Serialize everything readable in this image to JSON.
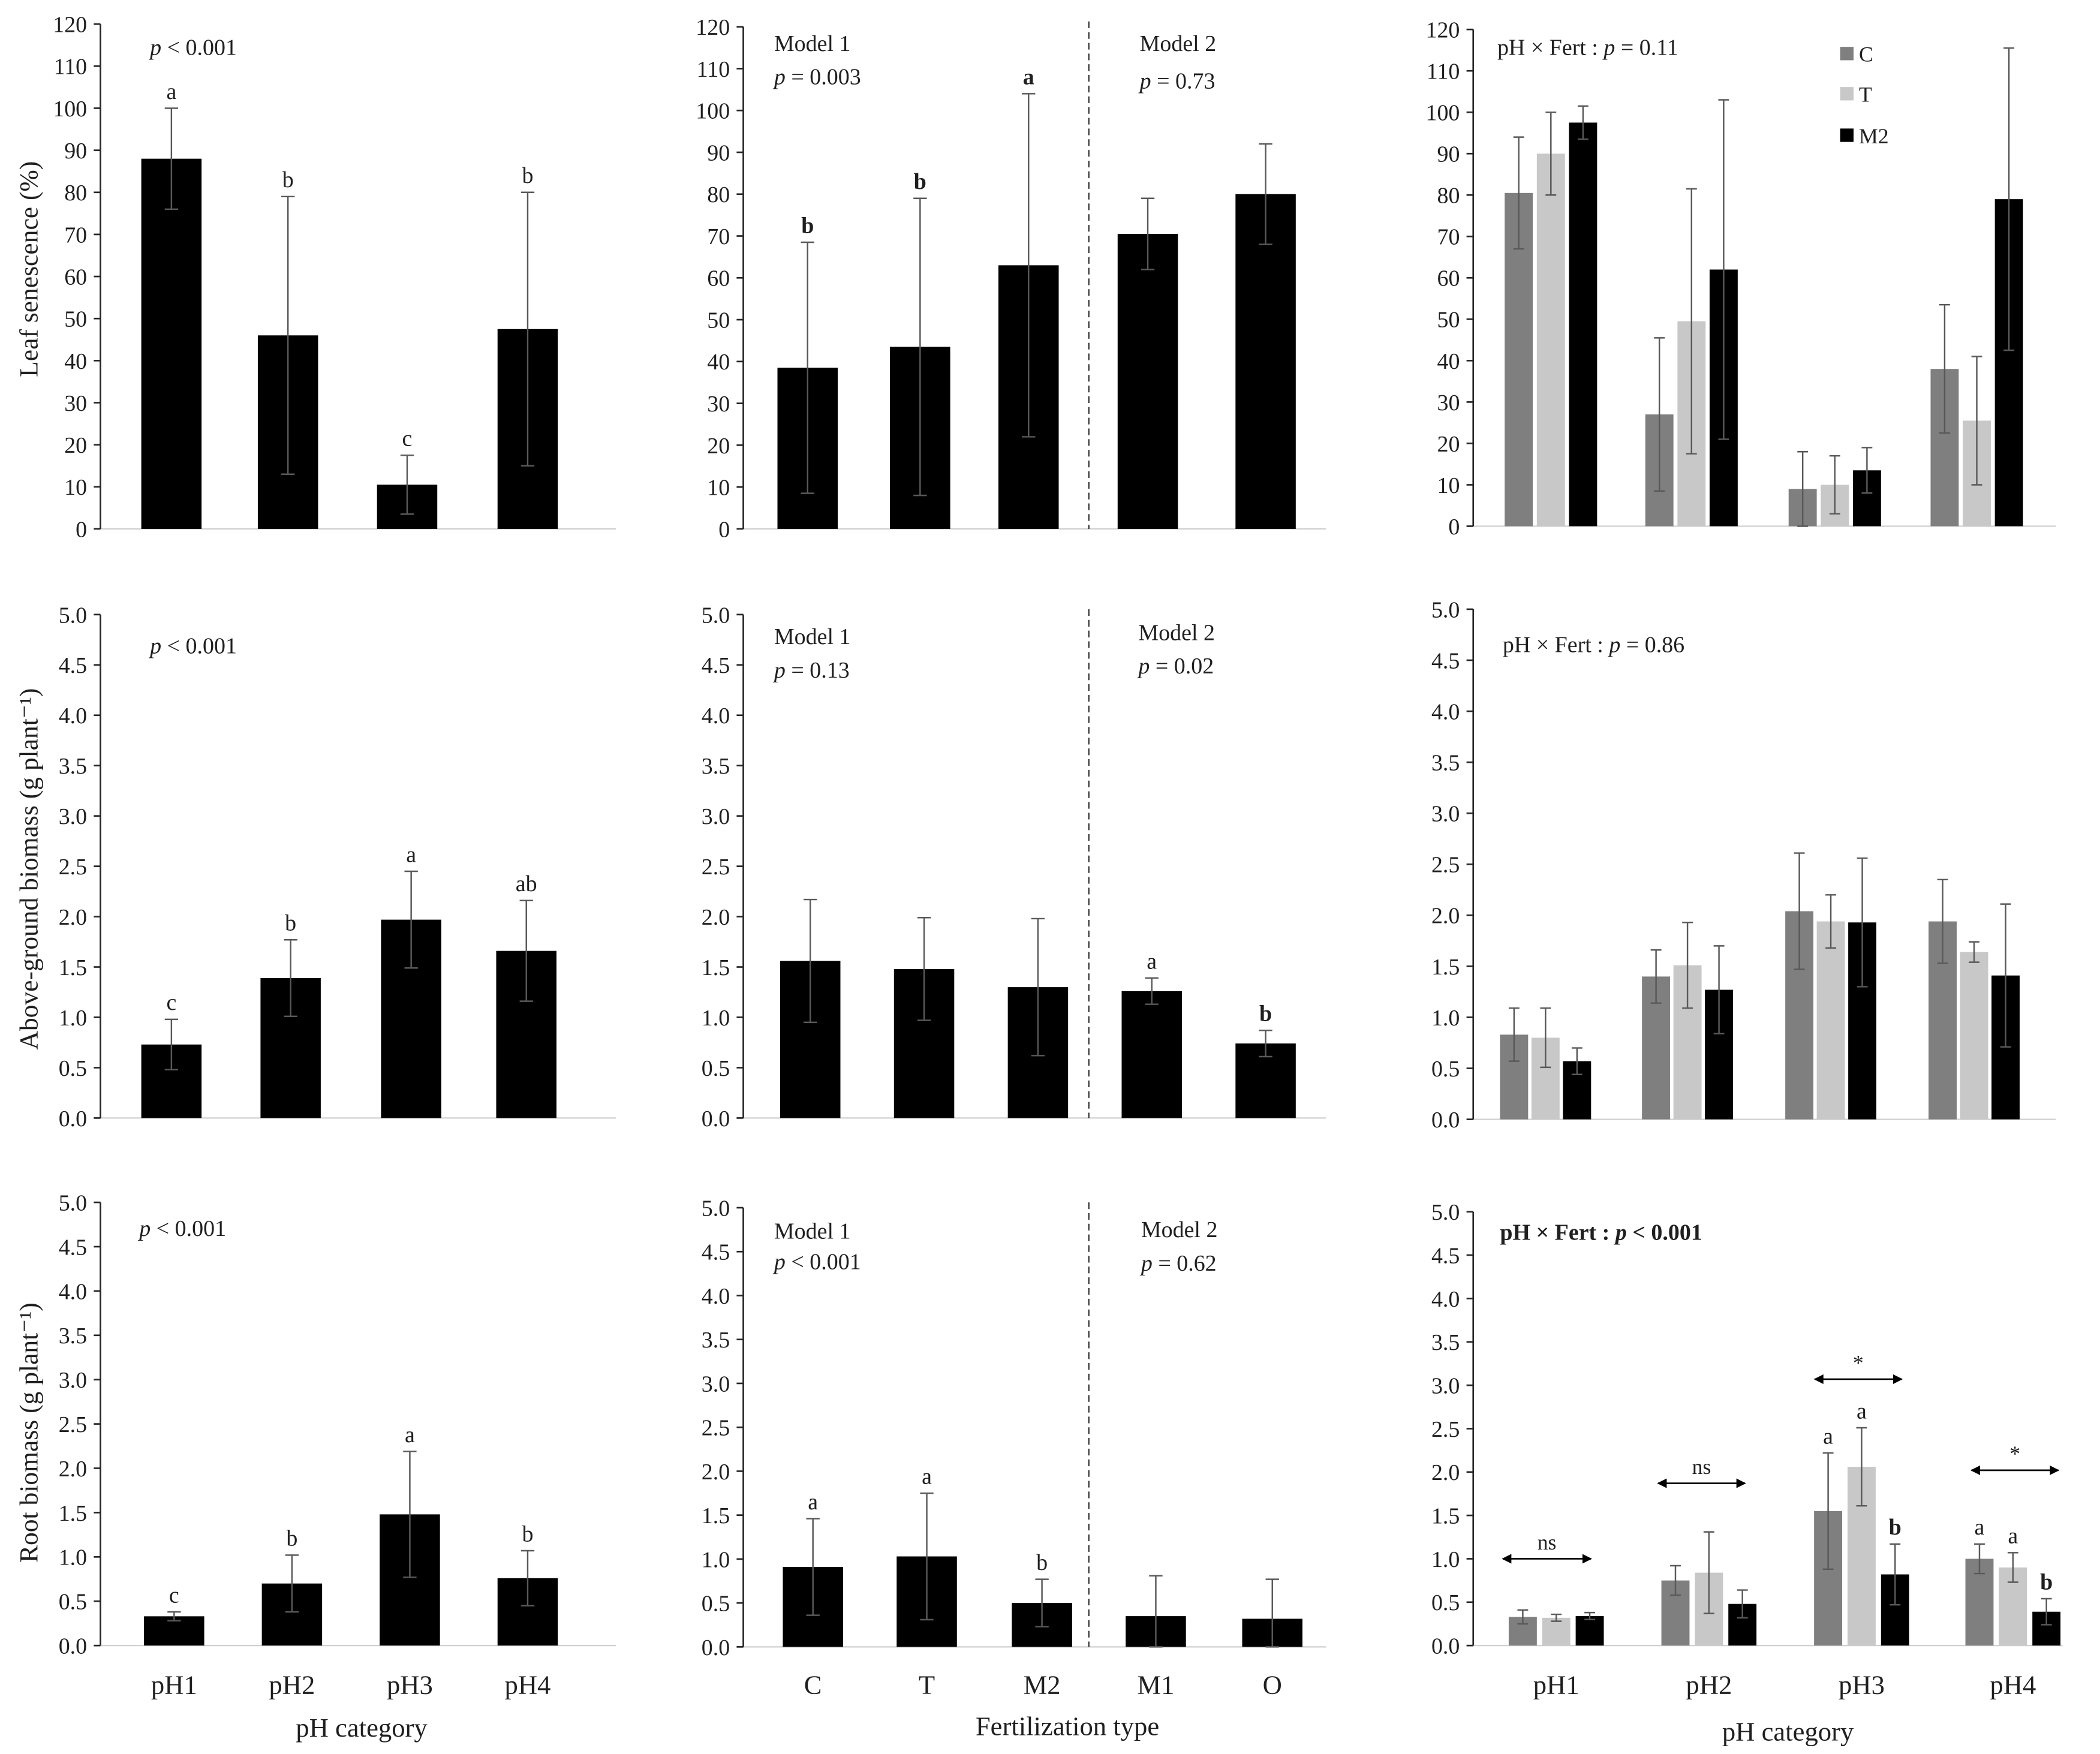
{
  "chart_data": {
    "type": "bar",
    "bar_color": "#000000",
    "columns": [
      {
        "categories": [
          "pH1",
          "pH2",
          "pH3",
          "pH4"
        ],
        "xlabel": "pH category"
      },
      {
        "categories": [
          "C",
          "T",
          "M2",
          "M1",
          "O"
        ],
        "xlabel": "Fertilization type"
      },
      {
        "categories": [
          "pH1",
          "pH2",
          "pH3",
          "pH4"
        ],
        "xlabel": "pH category",
        "legend": [
          {
            "name": "C",
            "color": "#7f7f7f"
          },
          {
            "name": "T",
            "color": "#c8c8c8"
          },
          {
            "name": "M2",
            "color": "#000000"
          }
        ]
      }
    ],
    "rows": [
      {
        "ylabel": "Leaf senescence (%)",
        "ylim": [
          0,
          120
        ],
        "yticks": [
          "0",
          "10",
          "20",
          "30",
          "40",
          "50",
          "60",
          "70",
          "80",
          "90",
          "100",
          "110",
          "120"
        ],
        "panels": [
          {
            "annotation": "p < 0.001",
            "series": [
              {
                "values": [
                  88,
                  46,
                  10.5,
                  47.5
                ],
                "errors": [
                  12,
                  33,
                  7,
                  32.5
                ],
                "letters": [
                  "a",
                  "b",
                  "c",
                  "b"
                ]
              }
            ]
          },
          {
            "models": [
              {
                "label": "Model 1",
                "test": "p = 0.003"
              },
              {
                "label": "Model 2",
                "test": "p = 0.73"
              }
            ],
            "series": [
              {
                "values": [
                  38.5,
                  43.5,
                  63,
                  70.5,
                  80
                ],
                "errors": [
                  30,
                  35.5,
                  41,
                  8.5,
                  12
                ],
                "letters": [
                  "b",
                  "b",
                  "a",
                  "",
                  ""
                ]
              }
            ]
          },
          {
            "annotation": "pH × Fert : p = 0.11",
            "series": [
              {
                "values": [
                  80.5,
                  27,
                  9,
                  38
                ],
                "errors": [
                  13.5,
                  18.5,
                  9,
                  15.5
                ]
              },
              {
                "values": [
                  90,
                  49.5,
                  10,
                  25.5
                ],
                "errors": [
                  10,
                  32,
                  7,
                  15.5
                ]
              },
              {
                "values": [
                  97.5,
                  62,
                  13.5,
                  79
                ],
                "errors": [
                  4,
                  41,
                  5.5,
                  36.5
                ]
              }
            ]
          }
        ]
      },
      {
        "ylabel": "Above-ground biomass (g plant⁻¹)",
        "ylim": [
          0,
          5
        ],
        "yticks": [
          "0.0",
          "0.5",
          "1.0",
          "1.5",
          "2.0",
          "2.5",
          "3.0",
          "3.5",
          "4.0",
          "4.5",
          "5.0"
        ],
        "panels": [
          {
            "annotation": "p < 0.001",
            "series": [
              {
                "values": [
                  0.73,
                  1.39,
                  1.97,
                  1.66
                ],
                "errors": [
                  0.25,
                  0.38,
                  0.48,
                  0.5
                ],
                "letters": [
                  "c",
                  "b",
                  "a",
                  "ab"
                ]
              }
            ]
          },
          {
            "models": [
              {
                "label": "Model 1",
                "test": "p = 0.13"
              },
              {
                "label": "Model 2",
                "test": "p = 0.02"
              }
            ],
            "series": [
              {
                "values": [
                  1.56,
                  1.48,
                  1.3,
                  1.26,
                  0.74
                ],
                "errors": [
                  0.61,
                  0.51,
                  0.68,
                  0.13,
                  0.13
                ],
                "letters": [
                  "",
                  "",
                  "",
                  "a",
                  "b"
                ]
              }
            ]
          },
          {
            "annotation": "pH × Fert : p = 0.86",
            "series": [
              {
                "values": [
                  0.83,
                  1.4,
                  2.04,
                  1.94
                ],
                "errors": [
                  0.26,
                  0.26,
                  0.57,
                  0.41
                ]
              },
              {
                "values": [
                  0.8,
                  1.51,
                  1.94,
                  1.64
                ],
                "errors": [
                  0.29,
                  0.42,
                  0.26,
                  0.1
                ]
              },
              {
                "values": [
                  0.57,
                  1.27,
                  1.93,
                  1.41
                ],
                "errors": [
                  0.13,
                  0.43,
                  0.63,
                  0.7
                ]
              }
            ]
          }
        ]
      },
      {
        "ylabel": "Root biomass (g plant⁻¹)",
        "ylim": [
          0,
          5
        ],
        "yticks": [
          "0.0",
          "0.5",
          "1.0",
          "1.5",
          "2.0",
          "2.5",
          "3.0",
          "3.5",
          "4.0",
          "4.5",
          "5.0"
        ],
        "panels": [
          {
            "annotation": "p < 0.001",
            "series": [
              {
                "values": [
                  0.33,
                  0.7,
                  1.48,
                  0.76
                ],
                "errors": [
                  0.05,
                  0.32,
                  0.71,
                  0.31
                ],
                "letters": [
                  "c",
                  "b",
                  "a",
                  "b"
                ]
              }
            ]
          },
          {
            "models": [
              {
                "label": "Model 1",
                "test": "p < 0.001"
              },
              {
                "label": "Model 2",
                "test": "p = 0.62"
              }
            ],
            "series": [
              {
                "values": [
                  0.91,
                  1.03,
                  0.5,
                  0.35,
                  0.32
                ],
                "errors": [
                  0.55,
                  0.72,
                  0.27,
                  0.46,
                  0.45
                ],
                "letters": [
                  "a",
                  "a",
                  "b",
                  "",
                  ""
                ]
              }
            ]
          },
          {
            "annotation": "pH × Fert : p < 0.001",
            "series": [
              {
                "values": [
                  0.33,
                  0.75,
                  1.55,
                  1.0
                ],
                "errors": [
                  0.08,
                  0.17,
                  0.67,
                  0.17
                ],
                "letters": [
                  "",
                  "",
                  "a",
                  "a"
                ]
              },
              {
                "values": [
                  0.32,
                  0.84,
                  2.06,
                  0.9
                ],
                "errors": [
                  0.04,
                  0.47,
                  0.45,
                  0.17
                ],
                "letters": [
                  "",
                  "",
                  "a",
                  "a"
                ]
              },
              {
                "values": [
                  0.34,
                  0.48,
                  0.82,
                  0.39
                ],
                "errors": [
                  0.04,
                  0.16,
                  0.35,
                  0.15
                ],
                "letters": [
                  "",
                  "",
                  "b",
                  "b"
                ]
              }
            ],
            "group_tests": [
              "ns",
              "ns",
              "*",
              "*"
            ]
          }
        ]
      }
    ]
  }
}
